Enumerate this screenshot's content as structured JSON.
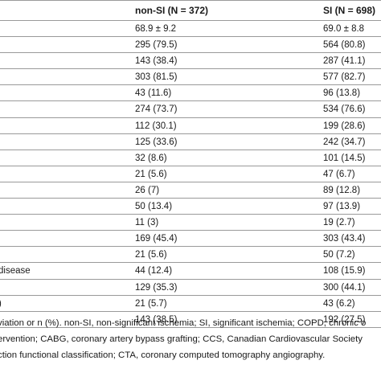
{
  "table": {
    "headers": {
      "nonsi": "non-SI (N = 372)",
      "si": "SI (N = 698)"
    },
    "rows": [
      {
        "label": "",
        "nonsi": "68.9 ± 9.2",
        "si": "69.0 ± 8.8"
      },
      {
        "label": "",
        "nonsi": "295 (79.5)",
        "si": "564 (80.8)"
      },
      {
        "label": "",
        "nonsi": "143 (38.4)",
        "si": "287 (41.1)"
      },
      {
        "label": "",
        "nonsi": "303 (81.5)",
        "si": "577 (82.7)"
      },
      {
        "label": "",
        "nonsi": "43 (11.6)",
        "si": "96 (13.8)"
      },
      {
        "label": "",
        "nonsi": "274 (73.7)",
        "si": "534 (76.6)"
      },
      {
        "label": "",
        "nonsi": "112 (30.1)",
        "si": "199 (28.6)"
      },
      {
        "label": "",
        "nonsi": "125 (33.6)",
        "si": "242 (34.7)"
      },
      {
        "label": "",
        "nonsi": "32 (8.6)",
        "si": "101 (14.5)"
      },
      {
        "label": "",
        "nonsi": "21 (5.6)",
        "si": "47 (6.7)"
      },
      {
        "label": "",
        "nonsi": "26 (7)",
        "si": "89 (12.8)"
      },
      {
        "label": "",
        "nonsi": "50 (13.4)",
        "si": "97 (13.9)"
      },
      {
        "label": "",
        "nonsi": "11 (3)",
        "si": "19 (2.7)"
      },
      {
        "label": "",
        "nonsi": "169 (45.4)",
        "si": "303 (43.4)"
      },
      {
        "label": "",
        "nonsi": "21 (5.6)",
        "si": "50 (7.2)"
      },
      {
        "label": " disease",
        "nonsi": "44 (12.4)",
        "si": "108 (15.9)"
      },
      {
        "label": "",
        "nonsi": "129 (35.3)",
        "si": "300 (44.1)"
      },
      {
        "label": ")",
        "nonsi": "21 (5.7)",
        "si": "43 (6.2)"
      },
      {
        "label": "",
        "nonsi": "143 (38.5)",
        "si": "192 (27.5)"
      }
    ]
  },
  "footnote": {
    "lines": [
      "viation or n (%). non-SI, non-significant ischemia; SI, significant ischemia; COPD, chronic o",
      "ervention; CABG, coronary artery bypass grafting; CCS, Canadian Cardiovascular Society",
      "ction functional classification; CTA, coronary computed tomography angiography."
    ]
  }
}
